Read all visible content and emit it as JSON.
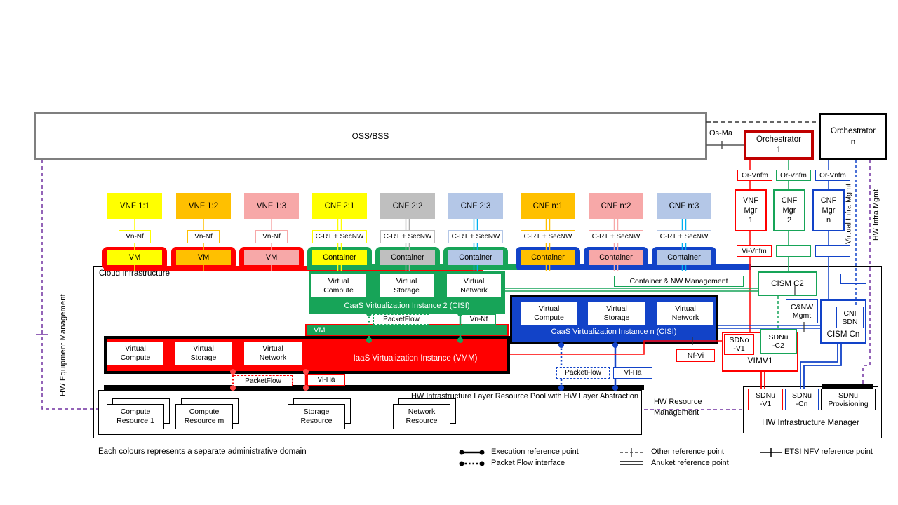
{
  "palette": {
    "red": "#FF0000",
    "dark_red": "#C00000",
    "green": "#17A458",
    "blue": "#1243C8",
    "cyan": "#00B0F0",
    "yellow": "#FFFF00",
    "orange": "#FFC000",
    "pink": "#F7A8A8",
    "gray": "#BFBFBF",
    "gray_line": "#ADADAD",
    "light_blue": "#B4C7E7",
    "purple": "#7030A0",
    "oss_border": "#7F7F7F"
  },
  "top": {
    "oss": "OSS/BSS",
    "os_ma": "Os-Ma",
    "orch1": [
      "Orchestrator",
      "1"
    ],
    "orchn": [
      "Orchestrator",
      "n"
    ]
  },
  "managers": [
    {
      "ref": "Or-Vnfm",
      "lines": [
        "VNF",
        "Mgr",
        "1"
      ],
      "lower": "Vi-Vnfm",
      "color": "red"
    },
    {
      "ref": "Or-Vnfm",
      "lines": [
        "CNF",
        "Mgr",
        "2"
      ],
      "lower": "",
      "color": "green"
    },
    {
      "ref": "Or-Vnfm",
      "lines": [
        "CNF",
        "Mgr",
        "n"
      ],
      "lower": "",
      "color": "blue"
    }
  ],
  "nf_columns": [
    {
      "name": "VNF 1:1",
      "ref": "Vn-Nf",
      "unit": "VM",
      "fill": "#FFFF00",
      "line": "#FFFF00",
      "base": "red",
      "double": false
    },
    {
      "name": "VNF 1:2",
      "ref": "Vn-Nf",
      "unit": "VM",
      "fill": "#FFC000",
      "line": "#FFC000",
      "base": "red",
      "double": false
    },
    {
      "name": "VNF 1:3",
      "ref": "Vn-Nf",
      "unit": "VM",
      "fill": "#F7A8A8",
      "line": "#F7A8A8",
      "base": "red",
      "double": false
    },
    {
      "name": "CNF 2:1",
      "ref": "C-RT + SecNW",
      "unit": "Container",
      "fill": "#FFFF00",
      "line": "#FFFF00",
      "base": "green",
      "double": true
    },
    {
      "name": "CNF 2:2",
      "ref": "C-RT + SecNW",
      "unit": "Container",
      "fill": "#BFBFBF",
      "line": "#ADADAD",
      "base": "green",
      "double": true
    },
    {
      "name": "CNF 2:3",
      "ref": "C-RT + SecNW",
      "unit": "Container",
      "fill": "#B4C7E7",
      "line": "#00B0F0",
      "base": "green",
      "double": true
    },
    {
      "name": "CNF n:1",
      "ref": "C-RT + SecNW",
      "unit": "Container",
      "fill": "#FFC000",
      "line": "#FFC000",
      "base": "blue",
      "double": true
    },
    {
      "name": "CNF n:2",
      "ref": "C-RT + SecNW",
      "unit": "Container",
      "fill": "#F7A8A8",
      "line": "#F7A8A8",
      "base": "blue",
      "double": true
    },
    {
      "name": "CNF n:3",
      "ref": "C-RT + SecNW",
      "unit": "Container",
      "fill": "#B4C7E7",
      "line": "#00B0F0",
      "base": "blue",
      "double": true
    }
  ],
  "cloud": {
    "title": "Cloud Infrastructure",
    "vm_bar": "VM",
    "caas2": {
      "cells": [
        [
          "Virtual",
          "Compute"
        ],
        [
          "Virtual",
          "Storage"
        ],
        [
          "Virtual",
          "Network"
        ]
      ],
      "title": "CaaS Virtualization Instance 2 (CISI)"
    },
    "caasn": {
      "cells": [
        [
          "Virtual",
          "Compute"
        ],
        [
          "Virtual",
          "Storage"
        ],
        [
          "Virtual",
          "Network"
        ]
      ],
      "title": "CaaS Virtualization Instance n (CISI)"
    },
    "vmm": {
      "cells": [
        [
          "Virtual",
          "Compute"
        ],
        [
          "Virtual",
          "Storage"
        ],
        [
          "Virtual",
          "Network"
        ]
      ],
      "title": "IaaS Virtualization Instance (VMM)"
    },
    "chips": {
      "green_packetflow": "PacketFlow",
      "green_vnnf": "Vn-Nf",
      "red_packetflow": "PacketFlow",
      "red_vlha": "Vl-Ha",
      "blue_packetflow": "PacketFlow",
      "blue_vlha": "Vl-Ha",
      "nf_vi": "Nf-Vi",
      "container_nw": "Container & NW Management"
    }
  },
  "right": {
    "cism_c2": "CISM C2",
    "cnw_mgmt": [
      "C&NW",
      "Mgmt"
    ],
    "cni_sdn": [
      "CNI",
      "SDN"
    ],
    "cism_cn": "CISM Cn",
    "sdno_v1": [
      "SDNo",
      "-V1"
    ],
    "sdnu_c2": [
      "SDNu",
      "-C2"
    ],
    "vimv1": "VIMV1"
  },
  "hw": {
    "pool_title": "HW Infrastructure Layer Resource Pool with HW Layer Abstraction",
    "resources": [
      [
        "Compute",
        "Resource 1"
      ],
      [
        "Compute",
        "Resource m"
      ],
      [
        "Storage",
        "Resource"
      ],
      [
        "Network",
        "Resource"
      ]
    ],
    "res_mgmt": [
      "HW Resource",
      "Management"
    ],
    "manager": {
      "title": "HW Infrastructure Manager",
      "sdnu_v1": [
        "SDNu",
        "-V1"
      ],
      "sdnu_cn": [
        "SDNu",
        "-Cn"
      ],
      "sdnu_prov": [
        "SDNu",
        "Provisioning"
      ]
    }
  },
  "side_labels": {
    "hw_equipment": "HW Equipment Management",
    "virtual_infra": "Virtual Infra Mgmt",
    "hw_infra": "HW Infra Mgmt"
  },
  "legend": {
    "note": "Each colours represents a separate administrative domain",
    "items": [
      "Execution reference point",
      "Packet Flow interface",
      "Other reference point",
      "Anuket reference point",
      "ETSI NFV reference point"
    ]
  }
}
